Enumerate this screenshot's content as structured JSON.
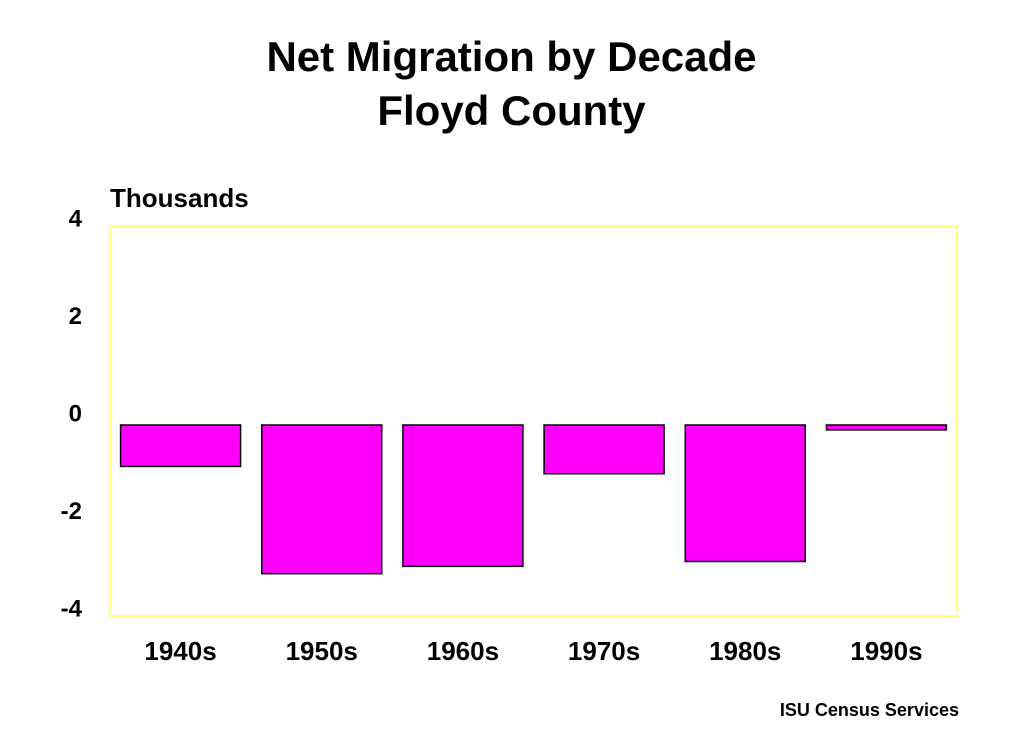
{
  "chart_data": {
    "type": "bar",
    "title": "Net Migration by Decade",
    "subtitle": "Floyd County",
    "ylabel": "Thousands",
    "xlabel": "",
    "categories": [
      "1940s",
      "1950s",
      "1960s",
      "1970s",
      "1980s",
      "1990s"
    ],
    "values": [
      -0.85,
      -3.05,
      -2.9,
      -1.0,
      -2.8,
      -0.1
    ],
    "ylim": [
      -4,
      4
    ],
    "yticks": [
      "4",
      "2",
      "0",
      "-2",
      "-4"
    ],
    "ytick_values": [
      4,
      2,
      0,
      -2,
      -4
    ],
    "grid": false,
    "legend": "none",
    "colors": {
      "bar_fill": "#FF00FF",
      "bar_stroke": "#000000",
      "plot_border": "#FFFF80"
    }
  },
  "footer": {
    "source": "ISU Census Services"
  }
}
